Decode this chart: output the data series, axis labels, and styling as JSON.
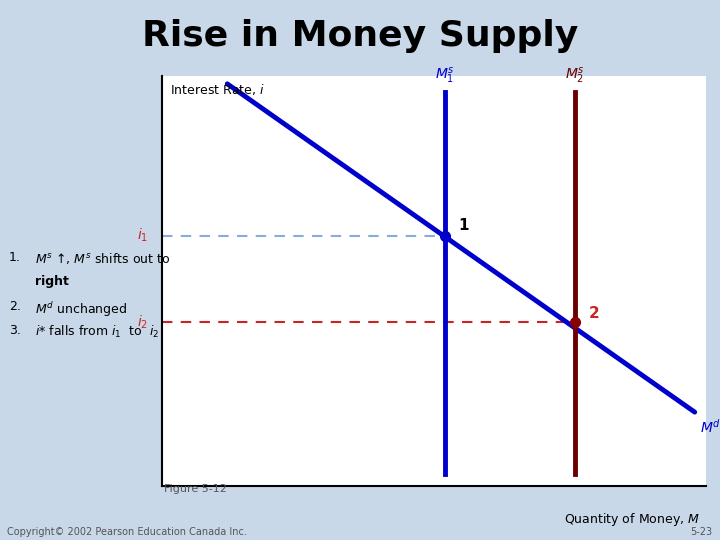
{
  "title": "Rise in Money Supply",
  "title_fontsize": 26,
  "title_fontweight": "bold",
  "bg_outer": "#c8d8e8",
  "bg_dark_panel": "#6888a0",
  "bg_light_panel": "#dce8f0",
  "bg_tan_strip": "#f0d8a8",
  "bg_tan_bottom": "#e8cfa0",
  "bg_chart": "#ffffff",
  "xlim": [
    0,
    10
  ],
  "ylim": [
    0,
    10
  ],
  "ms1_x": 5.2,
  "ms2_x": 7.6,
  "md_x0": 1.2,
  "md_x1": 9.8,
  "md_y0": 9.8,
  "md_y1": 1.8,
  "i1": 6.1,
  "i2": 4.0,
  "ms1_color": "#0000cc",
  "ms2_color": "#6b0000",
  "md_color": "#0000cc",
  "dashed_color1": "#88aadd",
  "dashed_color2": "#cc2222",
  "point1_color": "#0000cc",
  "point2_color": "#880000",
  "label_red": "#cc2222",
  "label_blue": "#0000cc",
  "label_darkred": "#6b0000",
  "copyright": "Copyright© 2002 Pearson Education Canada Inc.",
  "figure_label": "Figure 5-12",
  "page_number": "5-23"
}
